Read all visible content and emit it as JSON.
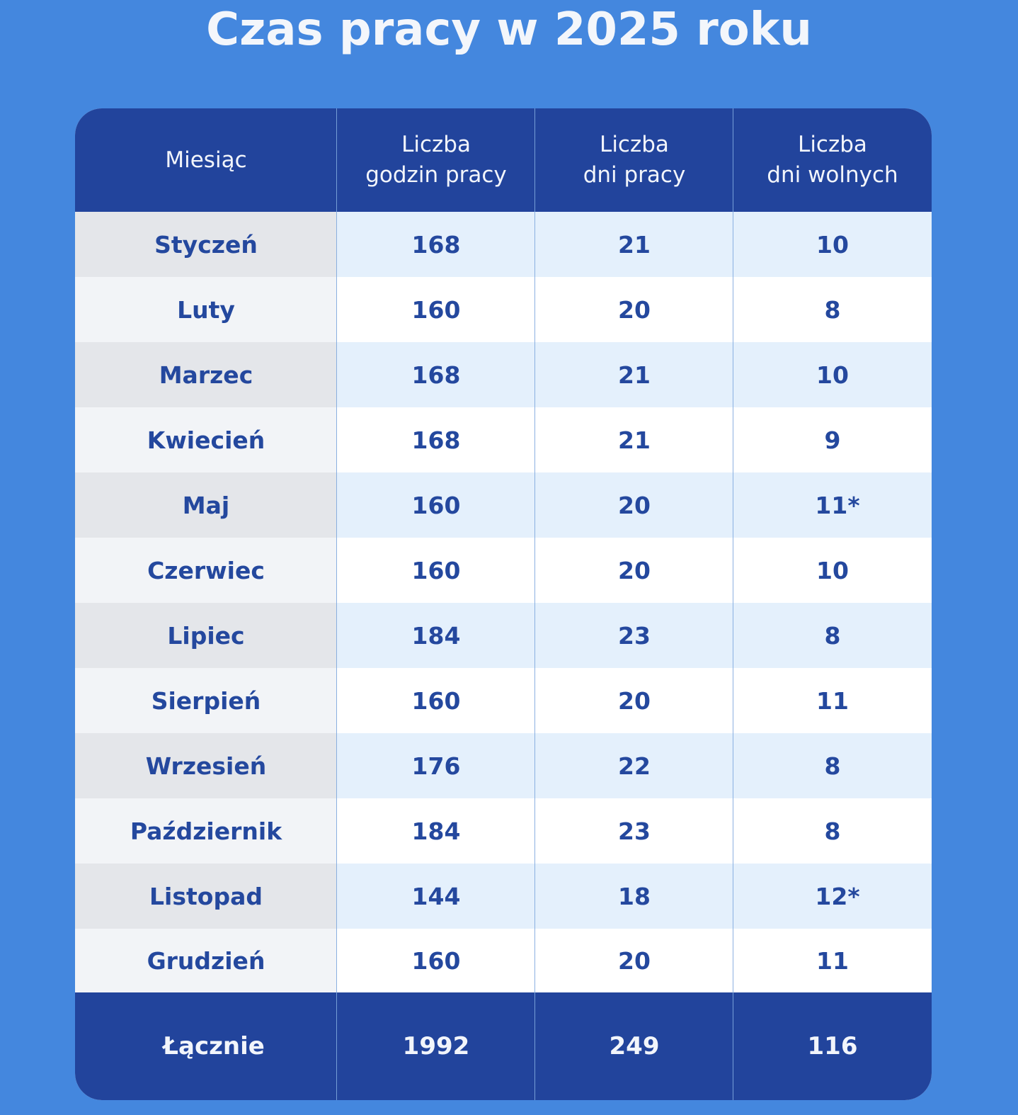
{
  "title": "Czas pracy w 2025 roku",
  "chart_data": {
    "type": "table",
    "title": "Czas pracy w 2025 roku",
    "columns": [
      "Miesiąc",
      "Liczba\ngodzin pracy",
      "Liczba\ndni pracy",
      "Liczba\ndni wolnych"
    ],
    "rows": [
      [
        "Styczeń",
        "168",
        "21",
        "10"
      ],
      [
        "Luty",
        "160",
        "20",
        "8"
      ],
      [
        "Marzec",
        "168",
        "21",
        "10"
      ],
      [
        "Kwiecień",
        "168",
        "21",
        "9"
      ],
      [
        "Maj",
        "160",
        "20",
        "11*"
      ],
      [
        "Czerwiec",
        "160",
        "20",
        "10"
      ],
      [
        "Lipiec",
        "184",
        "23",
        "8"
      ],
      [
        "Sierpień",
        "160",
        "20",
        "11"
      ],
      [
        "Wrzesień",
        "176",
        "22",
        "8"
      ],
      [
        "Październik",
        "184",
        "23",
        "8"
      ],
      [
        "Listopad",
        "144",
        "18",
        "12*"
      ],
      [
        "Grudzień",
        "160",
        "20",
        "11"
      ]
    ],
    "total": [
      "Łącznie",
      "1992",
      "249",
      "116"
    ]
  },
  "colors": {
    "background": "#4487de",
    "header": "#22449c",
    "text_dark": "#24489e",
    "row_alt_blue": "#e4f0fc",
    "row_alt_grey": "#e4e6ea"
  }
}
